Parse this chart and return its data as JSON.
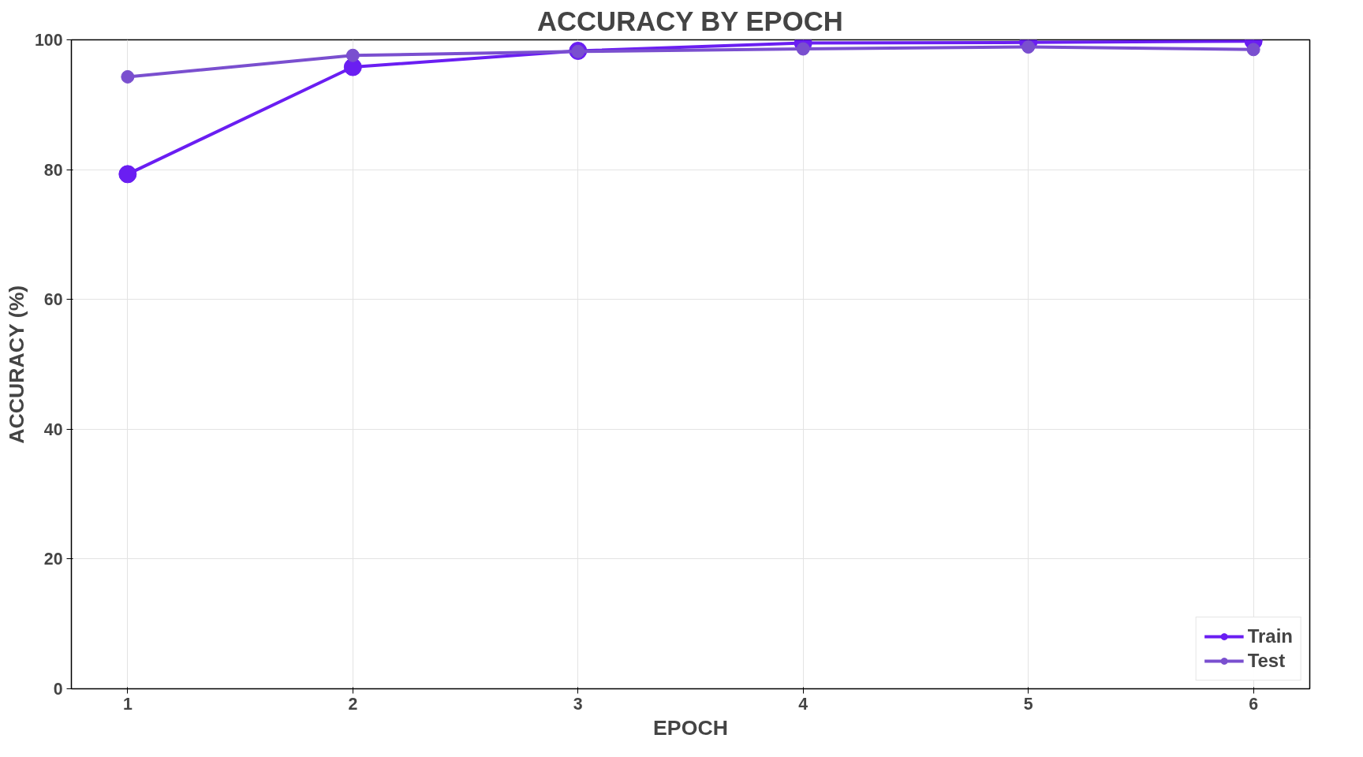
{
  "chart_data": {
    "type": "line",
    "title": "ACCURACY BY EPOCH",
    "xlabel": "EPOCH",
    "ylabel": "ACCURACY (%)",
    "x": [
      1,
      2,
      3,
      4,
      5,
      6
    ],
    "series": [
      {
        "name": "Train",
        "color": "#6a1ef2",
        "values": [
          79.3,
          95.8,
          98.3,
          99.5,
          99.6,
          99.8
        ]
      },
      {
        "name": "Test",
        "color": "#7a4fcf",
        "values": [
          94.3,
          97.6,
          98.2,
          98.6,
          98.9,
          98.5
        ]
      }
    ],
    "xlim": [
      0.75,
      6.25
    ],
    "xticks": [
      1,
      2,
      3,
      4,
      5,
      6
    ],
    "ylim": [
      0,
      100
    ],
    "yticks": [
      0,
      20,
      40,
      60,
      80,
      100
    ],
    "grid": true,
    "legend": "bottom right",
    "marker": "circle",
    "line_style": "solid"
  }
}
